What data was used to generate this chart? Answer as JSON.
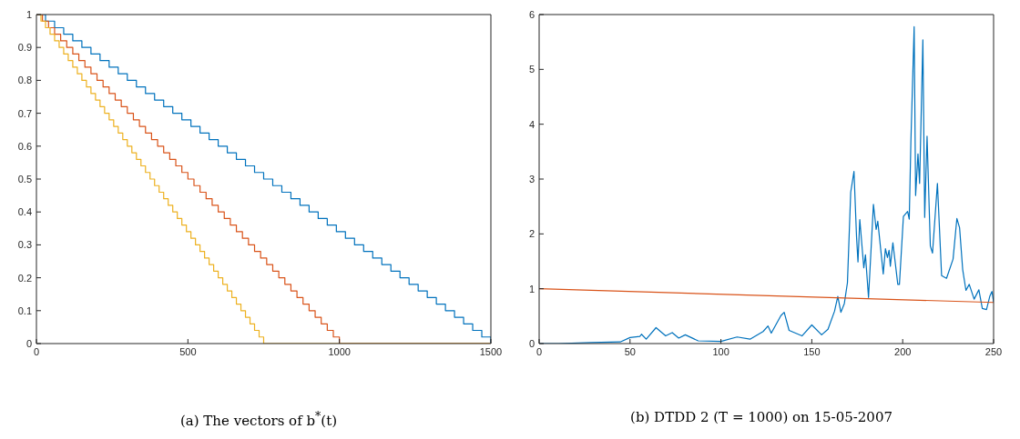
{
  "chart_data": [
    {
      "type": "step",
      "title": "(a) The vectors of b$^{*}$(t)",
      "xlim": [
        0,
        1500
      ],
      "xticks": [
        0,
        500,
        1000,
        1500
      ],
      "ylim": [
        0,
        1
      ],
      "yticks": [
        0,
        0.1,
        0.2,
        0.3,
        0.4,
        0.5,
        0.6,
        0.7,
        0.8,
        0.9,
        1
      ],
      "series": [
        {
          "color": "#0072bd",
          "x": [
            0,
            30,
            60,
            90,
            120,
            150,
            180,
            210,
            240,
            270,
            300,
            330,
            360,
            390,
            420,
            450,
            480,
            510,
            540,
            570,
            600,
            630,
            660,
            690,
            720,
            750,
            780,
            810,
            840,
            870,
            900,
            930,
            960,
            990,
            1020,
            1050,
            1080,
            1110,
            1140,
            1170,
            1200,
            1230,
            1260,
            1290,
            1320,
            1350,
            1380,
            1410,
            1440,
            1470,
            1500
          ],
          "values": [
            1,
            0.98,
            0.96,
            0.94,
            0.92,
            0.9,
            0.88,
            0.86,
            0.84,
            0.82,
            0.8,
            0.78,
            0.76,
            0.74,
            0.72,
            0.7,
            0.68,
            0.66,
            0.64,
            0.62,
            0.6,
            0.58,
            0.56,
            0.54,
            0.52,
            0.5,
            0.48,
            0.46,
            0.44,
            0.42,
            0.4,
            0.38,
            0.36,
            0.34,
            0.32,
            0.3,
            0.28,
            0.26,
            0.24,
            0.22,
            0.2,
            0.18,
            0.16,
            0.14,
            0.12,
            0.1,
            0.08,
            0.06,
            0.04,
            0.02,
            0
          ]
        },
        {
          "color": "#d95319",
          "x": [
            0,
            20,
            40,
            60,
            80,
            100,
            120,
            140,
            160,
            180,
            200,
            220,
            240,
            260,
            280,
            300,
            320,
            340,
            360,
            380,
            400,
            420,
            440,
            460,
            480,
            500,
            520,
            540,
            560,
            580,
            600,
            620,
            640,
            660,
            680,
            700,
            720,
            740,
            760,
            780,
            800,
            820,
            840,
            860,
            880,
            900,
            920,
            940,
            960,
            980,
            1000,
            1500
          ],
          "values": [
            1,
            0.98,
            0.96,
            0.94,
            0.92,
            0.9,
            0.88,
            0.86,
            0.84,
            0.82,
            0.8,
            0.78,
            0.76,
            0.74,
            0.72,
            0.7,
            0.68,
            0.66,
            0.64,
            0.62,
            0.6,
            0.58,
            0.56,
            0.54,
            0.52,
            0.5,
            0.48,
            0.46,
            0.44,
            0.42,
            0.4,
            0.38,
            0.36,
            0.34,
            0.32,
            0.3,
            0.28,
            0.26,
            0.24,
            0.22,
            0.2,
            0.18,
            0.16,
            0.14,
            0.12,
            0.1,
            0.08,
            0.06,
            0.04,
            0.02,
            0,
            0
          ]
        },
        {
          "color": "#edb120",
          "x": [
            0,
            15,
            30,
            45,
            60,
            75,
            90,
            105,
            120,
            135,
            150,
            165,
            180,
            195,
            210,
            225,
            240,
            255,
            270,
            285,
            300,
            315,
            330,
            345,
            360,
            375,
            390,
            405,
            420,
            435,
            450,
            465,
            480,
            495,
            510,
            525,
            540,
            555,
            570,
            585,
            600,
            615,
            630,
            645,
            660,
            675,
            690,
            705,
            720,
            735,
            750,
            1500
          ],
          "values": [
            1,
            0.98,
            0.96,
            0.94,
            0.92,
            0.9,
            0.88,
            0.86,
            0.84,
            0.82,
            0.8,
            0.78,
            0.76,
            0.74,
            0.72,
            0.7,
            0.68,
            0.66,
            0.64,
            0.62,
            0.6,
            0.58,
            0.56,
            0.54,
            0.52,
            0.5,
            0.48,
            0.46,
            0.44,
            0.42,
            0.4,
            0.38,
            0.36,
            0.34,
            0.32,
            0.3,
            0.28,
            0.26,
            0.24,
            0.22,
            0.2,
            0.18,
            0.16,
            0.14,
            0.12,
            0.1,
            0.08,
            0.06,
            0.04,
            0.02,
            0,
            0
          ]
        }
      ]
    },
    {
      "type": "line",
      "title": "(b) DTDD 2 (T = 1000) on 15-05-2007",
      "xlim": [
        0,
        250
      ],
      "xticks": [
        0,
        50,
        100,
        150,
        200,
        250
      ],
      "ylim": [
        0,
        6
      ],
      "yticks": [
        0,
        1,
        2,
        3,
        4,
        5,
        6
      ],
      "series": [
        {
          "color": "#0072bd",
          "x": [
            0,
            10.7,
            28.6,
            44.6,
            50,
            55.4,
            56.3,
            58.9,
            64.3,
            69.6,
            73.2,
            76.8,
            80.4,
            87.5,
            100,
            108.9,
            116,
            123.2,
            125.9,
            127.7,
            133,
            134.8,
            137.5,
            144.6,
            150,
            155.4,
            158.9,
            162.5,
            164.3,
            166,
            167.9,
            169.6,
            171.4,
            173.2,
            174.6,
            175.4,
            176.4,
            178.6,
            179.5,
            181.2,
            183.9,
            185.4,
            186.3,
            189.3,
            190.5,
            191.6,
            192.5,
            193.2,
            194.6,
            197.3,
            198.2,
            200.4,
            202.7,
            203.6,
            204.5,
            206.3,
            207.1,
            208.4,
            209.3,
            211.1,
            212.1,
            213.4,
            215.2,
            216.4,
            219.1,
            221.4,
            224.1,
            227.7,
            229.8,
            231.3,
            233,
            234.8,
            236.6,
            239.3,
            241.9,
            243.8,
            246.1,
            247.9,
            249.1,
            250
          ],
          "values": [
            0,
            0,
            0.02,
            0.03,
            0.11,
            0.13,
            0.17,
            0.08,
            0.29,
            0.14,
            0.2,
            0.1,
            0.16,
            0.05,
            0.04,
            0.12,
            0.08,
            0.22,
            0.32,
            0.19,
            0.51,
            0.57,
            0.24,
            0.14,
            0.34,
            0.16,
            0.26,
            0.59,
            0.86,
            0.57,
            0.73,
            1.11,
            2.76,
            3.14,
            1.95,
            1.49,
            2.26,
            1.38,
            1.62,
            0.84,
            2.54,
            2.08,
            2.23,
            1.27,
            1.73,
            1.57,
            1.7,
            1.41,
            1.84,
            1.08,
            1.08,
            2.32,
            2.41,
            2.27,
            3.68,
            5.78,
            2.7,
            3.46,
            2.92,
            5.54,
            2.3,
            3.78,
            1.78,
            1.65,
            2.92,
            1.24,
            1.19,
            1.54,
            2.28,
            2.11,
            1.35,
            0.97,
            1.08,
            0.81,
            0.98,
            0.64,
            0.62,
            0.86,
            0.95,
            0.76
          ]
        },
        {
          "color": "#d95319",
          "x": [
            0,
            250
          ],
          "values": [
            1,
            0.75
          ]
        }
      ]
    }
  ]
}
